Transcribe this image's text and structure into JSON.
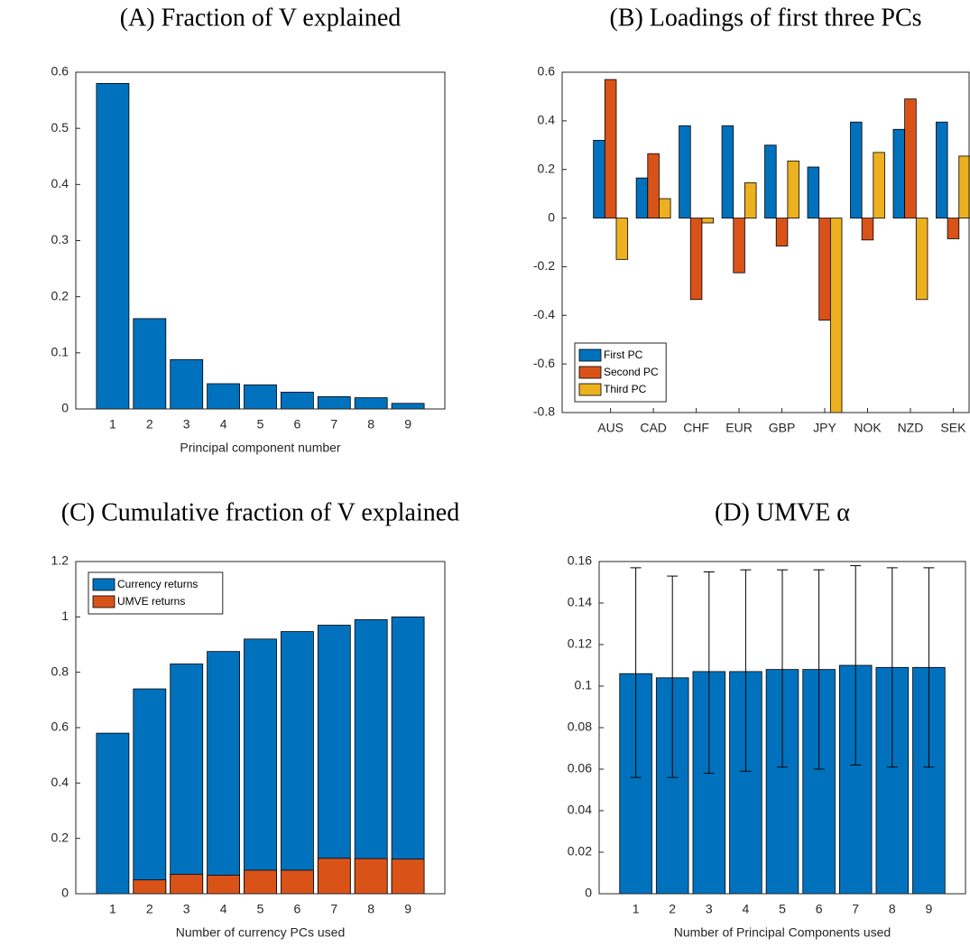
{
  "chart_data": [
    {
      "type": "bar",
      "title": "(A) Fraction of V explained",
      "x_label": "Principal component number",
      "x": [
        1,
        2,
        3,
        4,
        5,
        6,
        7,
        8,
        9
      ],
      "xlim": [
        0,
        10
      ],
      "values": [
        0.58,
        0.161,
        0.088,
        0.045,
        0.043,
        0.03,
        0.022,
        0.02,
        0.01
      ],
      "color": "#0072bd",
      "ylim": [
        0,
        0.6
      ],
      "yticks": [
        0,
        0.1,
        0.2,
        0.3,
        0.4,
        0.5,
        0.6
      ]
    },
    {
      "type": "bar",
      "title": "(B) Loadings of first three PCs",
      "categories": [
        "AUS",
        "CAD",
        "CHF",
        "EUR",
        "GBP",
        "JPY",
        "NOK",
        "NZD",
        "SEK"
      ],
      "series": [
        {
          "name": "First PC",
          "color": "#0072bd",
          "values": [
            0.32,
            0.165,
            0.38,
            0.38,
            0.3,
            0.21,
            0.395,
            0.365,
            0.395
          ]
        },
        {
          "name": "Second PC",
          "color": "#d95319",
          "values": [
            0.57,
            0.265,
            -0.335,
            -0.225,
            -0.115,
            -0.42,
            -0.09,
            0.49,
            -0.085
          ]
        },
        {
          "name": "Third PC",
          "color": "#edb120",
          "values": [
            -0.17,
            0.08,
            -0.02,
            0.145,
            0.235,
            -0.8,
            0.27,
            -0.335,
            0.255
          ]
        }
      ],
      "legend": "lower left",
      "ylim": [
        -0.8,
        0.6
      ],
      "yticks": [
        -0.8,
        -0.6,
        -0.4,
        -0.2,
        0,
        0.2,
        0.4,
        0.6
      ]
    },
    {
      "type": "bar",
      "title": "(C) Cumulative fraction of V explained",
      "x_label": "Number of currency PCs used",
      "x": [
        1,
        2,
        3,
        4,
        5,
        6,
        7,
        8,
        9
      ],
      "xlim": [
        0,
        10
      ],
      "overlay": true,
      "series": [
        {
          "name": "Currency returns",
          "color": "#0072bd",
          "values": [
            0.58,
            0.74,
            0.83,
            0.875,
            0.92,
            0.947,
            0.97,
            0.99,
            1.0
          ]
        },
        {
          "name": "UMVE returns",
          "color": "#d95319",
          "values": [
            0,
            0.05,
            0.07,
            0.067,
            0.085,
            0.085,
            0.128,
            0.127,
            0.125
          ]
        }
      ],
      "legend": "upper left",
      "ylim": [
        0,
        1.2
      ],
      "yticks": [
        0,
        0.2,
        0.4,
        0.6,
        0.8,
        1,
        1.2
      ]
    },
    {
      "type": "bar",
      "title": "(D) UMVE α",
      "x_label": "Number of Principal Components used",
      "x": [
        1,
        2,
        3,
        4,
        5,
        6,
        7,
        8,
        9
      ],
      "xlim": [
        0,
        10
      ],
      "values": [
        0.106,
        0.104,
        0.107,
        0.107,
        0.108,
        0.108,
        0.11,
        0.109,
        0.109
      ],
      "color": "#0072bd",
      "lower": [
        0.056,
        0.056,
        0.058,
        0.059,
        0.061,
        0.06,
        0.062,
        0.061,
        0.061
      ],
      "upper": [
        0.157,
        0.153,
        0.155,
        0.156,
        0.156,
        0.156,
        0.158,
        0.157,
        0.157
      ],
      "ylim": [
        0,
        0.16
      ],
      "yticks": [
        0,
        0.02,
        0.04,
        0.06,
        0.08,
        0.1,
        0.12,
        0.14,
        0.16
      ]
    }
  ]
}
